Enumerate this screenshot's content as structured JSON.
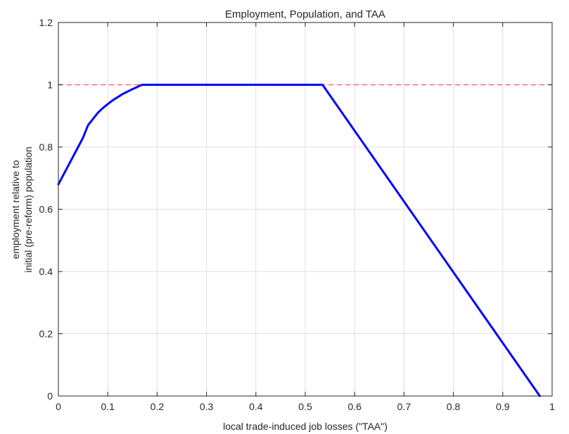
{
  "chart_data": {
    "type": "line",
    "title": "Employment, Population, and TAA",
    "xlabel": "local trade-induced job losses (\"TAA\")",
    "ylabel_lines": [
      "employment relative to",
      "initial (pre-reform) population"
    ],
    "xlim": [
      0,
      1
    ],
    "ylim": [
      0,
      1.2
    ],
    "xticks": [
      0,
      0.1,
      0.2,
      0.3,
      0.4,
      0.5,
      0.6,
      0.7,
      0.8,
      0.9,
      1
    ],
    "xtick_labels": [
      "0",
      "0.1",
      "0.2",
      "0.3",
      "0.4",
      "0.5",
      "0.6",
      "0.7",
      "0.8",
      "0.9",
      "1"
    ],
    "yticks": [
      0,
      0.2,
      0.4,
      0.6,
      0.8,
      1,
      1.2
    ],
    "ytick_labels": [
      "0",
      "0.2",
      "0.4",
      "0.6",
      "0.8",
      "1",
      "1.2"
    ],
    "grid": true,
    "series": [
      {
        "color": "#0000ff",
        "style": "solid",
        "x": [
          0,
          0.01,
          0.02,
          0.03,
          0.04,
          0.05,
          0.055,
          0.06,
          0.07,
          0.08,
          0.09,
          0.1,
          0.11,
          0.12,
          0.13,
          0.14,
          0.15,
          0.16,
          0.165,
          0.17,
          0.535,
          0.975
        ],
        "y": [
          0.68,
          0.71,
          0.74,
          0.77,
          0.8,
          0.83,
          0.85,
          0.87,
          0.89,
          0.91,
          0.925,
          0.938,
          0.95,
          0.96,
          0.97,
          0.978,
          0.986,
          0.993,
          0.997,
          1.0,
          1.0,
          0.0
        ]
      }
    ],
    "reference_lines": [
      {
        "orientation": "horizontal",
        "y": 1,
        "color": "#ff6b6b",
        "style": "dashed"
      }
    ]
  }
}
